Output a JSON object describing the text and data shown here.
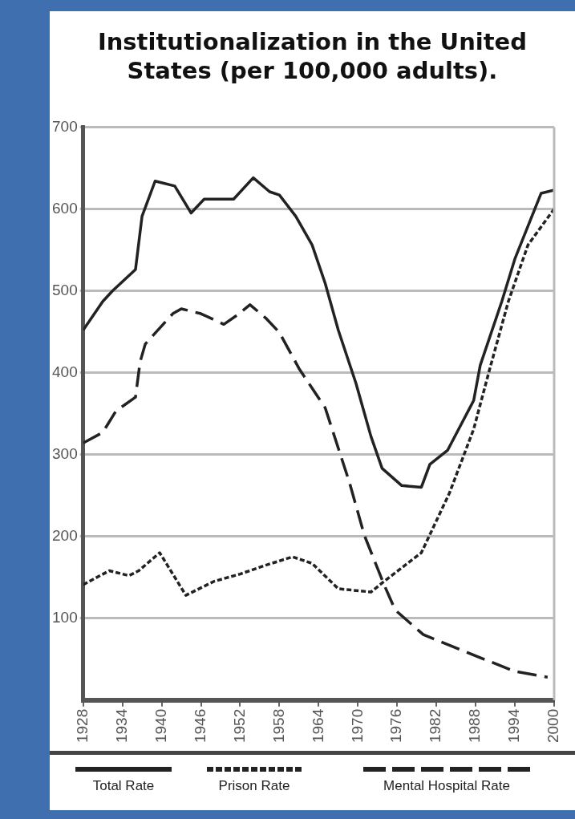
{
  "chart_data": {
    "type": "line",
    "title": "Institutionalization in the United States (per 100,000 adults).",
    "xlim": [
      1928,
      2000
    ],
    "xticks": [
      1928,
      1934,
      1940,
      1946,
      1952,
      1958,
      1964,
      1970,
      1976,
      1982,
      1988,
      1994,
      2000
    ],
    "ylim": [
      0,
      700
    ],
    "yticks": [
      100,
      200,
      300,
      400,
      500,
      600,
      700
    ],
    "grid": "y",
    "legend": "bottom",
    "marker": "none",
    "series": [
      {
        "name": "Total Rate",
        "color": "#222222",
        "line_style": "solid",
        "x": [
          1928,
          1931,
          1932.5,
          1936,
          1937,
          1939,
          1942,
          1944.5,
          1946.5,
          1951,
          1954,
          1956.5,
          1958,
          1960.5,
          1963,
          1965,
          1967,
          1969.7,
          1972,
          1973.7,
          1976.7,
          1979.7,
          1981,
          1983.7,
          1987.7,
          1988.7,
          1992,
          1994,
          1998,
          2000
        ],
        "values": [
          452,
          487,
          500,
          526,
          591,
          634,
          628,
          595,
          612,
          612,
          638,
          621,
          617,
          591,
          556,
          509,
          452,
          387,
          322,
          283,
          262,
          260,
          288,
          305,
          366,
          409,
          487,
          539,
          619,
          623
        ]
      },
      {
        "name": "Prison Rate",
        "color": "#222222",
        "line_style": "dotted",
        "x": [
          1928,
          1932,
          1935,
          1936.5,
          1939.7,
          1943.7,
          1948,
          1952,
          1956,
          1960,
          1963,
          1967,
          1972,
          1974,
          1979.7,
          1984,
          1987.7,
          1990,
          1993,
          1996,
          2000
        ],
        "values": [
          141,
          158,
          152,
          158,
          180,
          128,
          145,
          154,
          165,
          175,
          167,
          136,
          132,
          145,
          180,
          253,
          331,
          400,
          487,
          556,
          600
        ]
      },
      {
        "name": "Mental Hospital Rate",
        "color": "#222222",
        "line_style": "dashed",
        "x": [
          1928,
          1931,
          1933,
          1936,
          1936.7,
          1937.5,
          1941.7,
          1943,
          1946,
          1949.5,
          1951.5,
          1953.5,
          1956,
          1958,
          1961,
          1965,
          1968.7,
          1971,
          1974,
          1975.7,
          1980,
          1988,
          1994,
          1999
        ],
        "values": [
          314,
          327,
          353,
          370,
          413,
          435,
          472,
          478,
          472,
          459,
          470,
          483,
          466,
          449,
          405,
          357,
          266,
          201,
          141,
          110,
          80,
          54,
          35,
          28
        ]
      }
    ]
  }
}
